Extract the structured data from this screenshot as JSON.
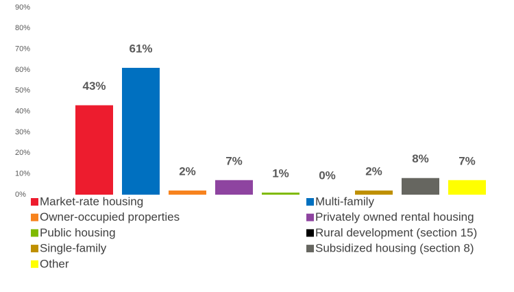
{
  "chart_data": {
    "type": "bar",
    "categories": [
      "Market-rate housing",
      "Multi-family",
      "Owner-occupied properties",
      "Privately owned rental housing",
      "Public housing",
      "Rural development (section 15)",
      "Single-family",
      "Subsidized housing (section 8)",
      "Other"
    ],
    "values": [
      43,
      61,
      2,
      7,
      1,
      0,
      2,
      8,
      7
    ],
    "value_labels": [
      "43%",
      "61%",
      "2%",
      "7%",
      "1%",
      "0%",
      "2%",
      "8%",
      "7%"
    ],
    "colors": [
      "#ed1c2e",
      "#0070c0",
      "#f7831e",
      "#8e44a0",
      "#7fba00",
      "#000000",
      "#bf9000",
      "#666660",
      "#ffff00"
    ],
    "ylim": [
      0,
      90
    ],
    "yticks": [
      {
        "value": 0,
        "label": "0%"
      },
      {
        "value": 10,
        "label": "10%"
      },
      {
        "value": 20,
        "label": "20%"
      },
      {
        "value": 30,
        "label": "30%"
      },
      {
        "value": 40,
        "label": "40%"
      },
      {
        "value": 50,
        "label": "50%"
      },
      {
        "value": 60,
        "label": "60%"
      },
      {
        "value": 70,
        "label": "70%"
      },
      {
        "value": 80,
        "label": "80%"
      },
      {
        "value": 90,
        "label": "90%"
      }
    ],
    "grid": false,
    "legend": "bottom"
  }
}
